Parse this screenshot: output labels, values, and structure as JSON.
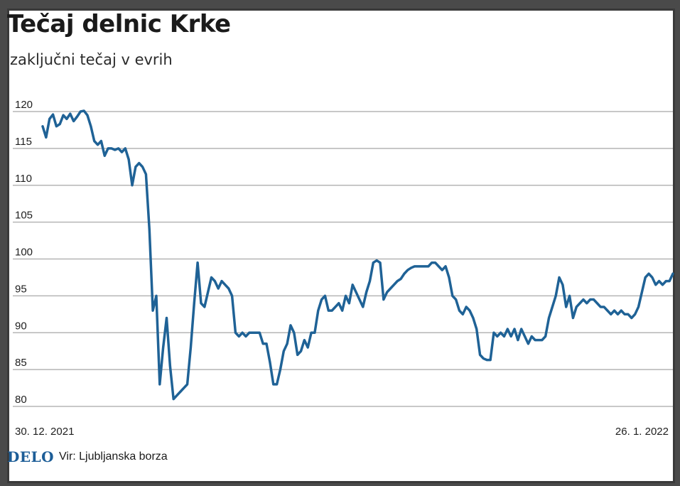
{
  "title": "Tečaj delnic Krke",
  "subtitle": "zaključni tečaj v evrih",
  "footer": {
    "logo": "DELO",
    "source": "Vir: Ljubljanska borza"
  },
  "colors": {
    "line": "#1f6296",
    "grid": "#b5b5b5",
    "logo": "#1c5d97"
  },
  "chart_data": {
    "type": "line",
    "title": "Tečaj delnic Krke",
    "subtitle": "zaključni tečaj v evrih",
    "xlabel": "",
    "ylabel": "",
    "ylim": [
      80,
      120
    ],
    "yticks": [
      120,
      115,
      110,
      105,
      100,
      95,
      90,
      85,
      80
    ],
    "x_tick_labels": [
      "30. 12. 2021",
      "26. 1. 2022"
    ],
    "grid": "horizontal",
    "legend": "none",
    "series": [
      {
        "values": [
          118,
          116.5,
          119,
          119.6,
          118,
          118.3,
          119.5,
          119,
          119.7,
          118.7,
          119.3,
          120,
          120.1,
          119.5,
          118,
          116,
          115.5,
          116,
          114,
          115,
          115,
          114.8,
          115,
          114.5,
          115,
          113.5,
          110,
          112.5,
          113,
          112.5,
          111.5,
          104,
          93,
          95,
          83,
          88,
          92,
          85.5,
          81,
          81.5,
          82,
          82.5,
          83,
          88,
          94,
          99.5,
          94,
          93.5,
          95.5,
          97.5,
          97,
          96,
          97,
          96.5,
          96,
          95,
          90,
          89.5,
          90,
          89.5,
          90,
          90,
          90,
          90,
          88.5,
          88.5,
          86,
          83,
          83,
          85,
          87.5,
          88.5,
          91,
          90,
          87,
          87.5,
          89,
          88,
          90,
          90,
          93,
          94.5,
          95,
          93,
          93,
          93.5,
          94,
          93,
          95,
          94,
          96.5,
          95.5,
          94.5,
          93.5,
          95.5,
          97,
          99.5,
          99.8,
          99.5,
          94.5,
          95.5,
          96,
          96.5,
          97,
          97.3,
          98,
          98.5,
          98.8,
          99,
          99,
          99,
          99,
          99,
          99.5,
          99.5,
          99,
          98.5,
          99,
          97.5,
          95,
          94.5,
          93,
          92.5,
          93.5,
          93,
          92,
          90.5,
          87,
          86.5,
          86.3,
          86.3,
          90,
          89.5,
          90,
          89.5,
          90.5,
          89.5,
          90.5,
          89,
          90.5,
          89.5,
          88.5,
          89.5,
          89,
          89,
          89,
          89.5,
          92,
          93.5,
          95,
          97.5,
          96.5,
          93.5,
          95,
          92,
          93.5,
          94,
          94.5,
          94,
          94.5,
          94.5,
          94,
          93.5,
          93.5,
          93,
          92.5,
          93,
          92.5,
          93,
          92.5,
          92.5,
          92,
          92.5,
          93.5,
          95.5,
          97.5,
          98,
          97.5,
          96.5,
          97,
          96.5,
          97,
          97,
          98
        ]
      }
    ]
  }
}
